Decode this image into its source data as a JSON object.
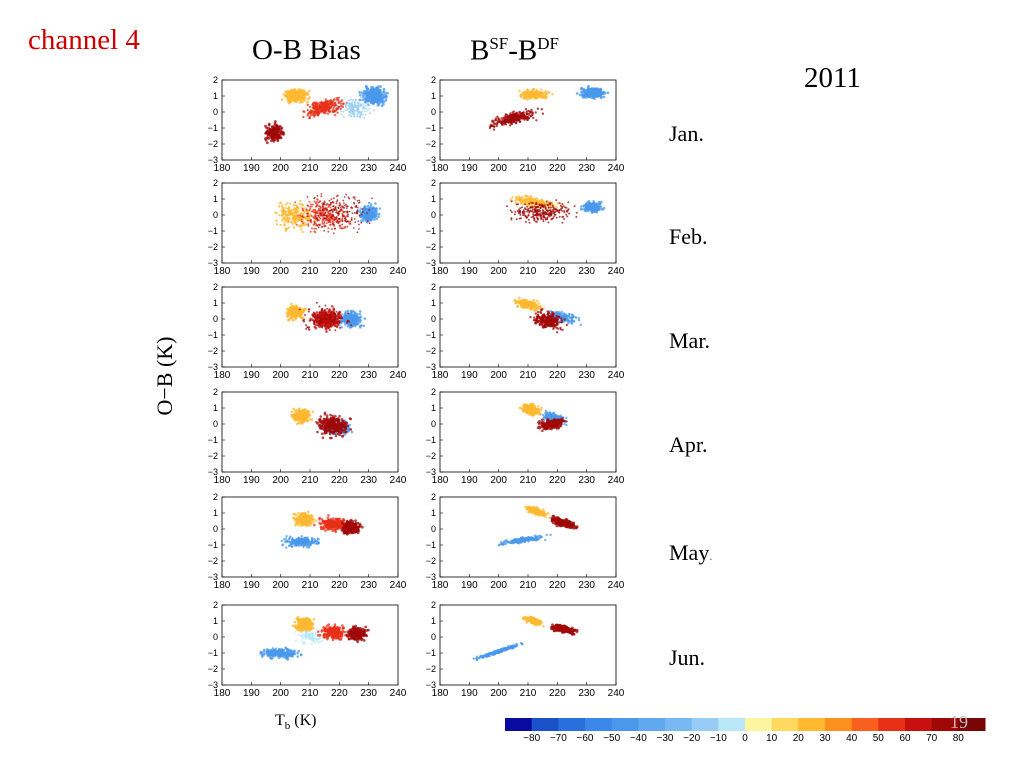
{
  "slide": {
    "channel_label": "channel 4",
    "col1_title": "O-B Bias",
    "col2_title_base1": "B",
    "col2_title_sup1": "SF",
    "col2_title_mid": "-B",
    "col2_title_sup2": "DF",
    "year": "2011",
    "y_axis_label": "O−B (K)",
    "x_axis_label_base": "T",
    "x_axis_label_sub": "b",
    "x_axis_label_unit": " (K)",
    "months": [
      "Jan.",
      "Feb.",
      "Mar.",
      "Apr.",
      "May",
      "Jun."
    ],
    "page_number": "19"
  },
  "chart_data": [
    {
      "type": "scatter",
      "title": "O-B Bias",
      "xlabel": "Tb (K)",
      "ylabel": "O−B (K)",
      "xlim": [
        180,
        240
      ],
      "ylim": [
        -3,
        2
      ],
      "x_ticks": [
        180,
        190,
        200,
        210,
        220,
        230,
        240
      ],
      "y_ticks": [
        -3,
        -2,
        -1,
        0,
        1,
        2
      ],
      "panels": [
        "Jan.",
        "Feb.",
        "Mar.",
        "Apr.",
        "May",
        "Jun."
      ],
      "color_scale_values": [
        -80,
        -70,
        -60,
        -50,
        -40,
        -30,
        -20,
        -10,
        0,
        10,
        20,
        30,
        40,
        50,
        60,
        70,
        80
      ]
    },
    {
      "type": "scatter",
      "title": "BSF-BDF",
      "xlabel": "Tb (K)",
      "ylabel": "O−B (K)",
      "xlim": [
        180,
        240
      ],
      "ylim": [
        -3,
        2
      ],
      "x_ticks": [
        180,
        190,
        200,
        210,
        220,
        230,
        240
      ],
      "y_ticks": [
        -3,
        -2,
        -1,
        0,
        1,
        2
      ],
      "panels": [
        "Jan.",
        "Feb.",
        "Mar.",
        "Apr.",
        "May",
        "Jun."
      ]
    }
  ],
  "colorbar": {
    "labels": [
      "−80",
      "−70",
      "−60",
      "−50",
      "−40",
      "−30",
      "−20",
      "−10",
      "0",
      "10",
      "20",
      "30",
      "40",
      "50",
      "60",
      "70",
      "80"
    ],
    "colors": [
      "#0a0aa0",
      "#1a50c8",
      "#2a70dc",
      "#3a88e8",
      "#4a98ec",
      "#60a8f0",
      "#78b8f2",
      "#98ccf4",
      "#b8e8f8",
      "#fff4a0",
      "#ffd860",
      "#ffb830",
      "#ff9020",
      "#f86020",
      "#e83018",
      "#c81010",
      "#a00808",
      "#780606"
    ]
  }
}
